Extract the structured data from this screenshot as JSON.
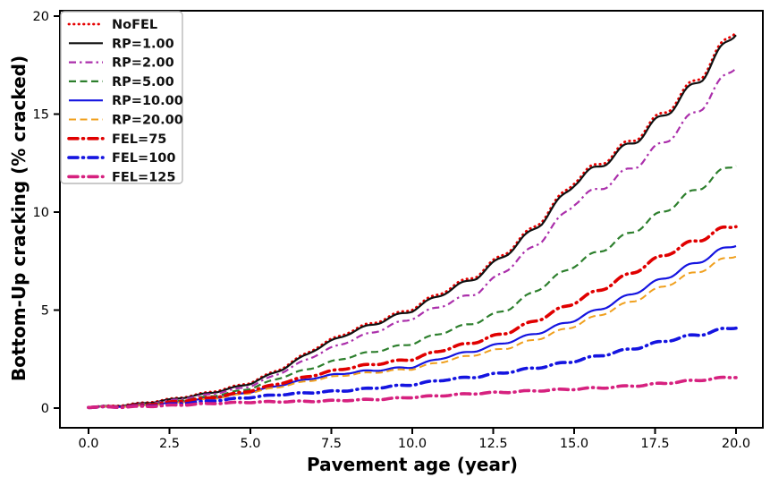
{
  "chart_data": {
    "type": "line",
    "title": "",
    "xlabel": "Pavement age (year)",
    "ylabel": "Bottom-Up cracking (% cracked)",
    "xlim": [
      -1.0,
      20.85
    ],
    "ylim": [
      -0.55,
      20.3
    ],
    "grid": false,
    "legend_position": "upper left",
    "xticks": [
      0,
      2.5,
      5,
      7.5,
      10,
      12.5,
      15,
      17.5,
      20
    ],
    "xtick_labels": [
      "0.0",
      "2.5",
      "5.0",
      "7.5",
      "10.0",
      "12.5",
      "15.0",
      "17.5",
      "20.0"
    ],
    "yticks": [
      0,
      5,
      10,
      15,
      20
    ],
    "ytick_labels": [
      "0",
      "5",
      "10",
      "15",
      "20"
    ],
    "x": [
      0,
      1,
      2,
      3,
      4,
      5,
      6,
      7,
      8,
      9,
      10,
      11,
      12,
      13,
      14,
      15,
      16,
      17,
      18,
      19,
      20
    ],
    "series": [
      {
        "name": "NoFEL",
        "color": "#e60000",
        "style": "dotted",
        "width": 2.8,
        "values": [
          0.05,
          0.14,
          0.33,
          0.58,
          0.9,
          1.3,
          2.06,
          3.07,
          3.88,
          4.48,
          5.09,
          6.0,
          6.8,
          8.1,
          9.62,
          11.62,
          12.72,
          13.93,
          15.44,
          17.15,
          19.45
        ]
      },
      {
        "name": "RP=1.00",
        "color": "#111111",
        "style": "solid",
        "width": 2.2,
        "values": [
          0.05,
          0.12,
          0.3,
          0.55,
          0.85,
          1.25,
          2.0,
          3.0,
          3.8,
          4.4,
          5.0,
          5.9,
          6.7,
          8.0,
          9.5,
          11.5,
          12.6,
          13.8,
          15.3,
          17.0,
          19.3
        ]
      },
      {
        "name": "RP=2.00",
        "color": "#ab2fab",
        "style": "dashdot",
        "width": 2.2,
        "values": [
          0.05,
          0.1,
          0.26,
          0.5,
          0.78,
          1.12,
          1.85,
          2.7,
          3.4,
          4.0,
          4.6,
          5.3,
          5.9,
          7.2,
          8.6,
          10.5,
          11.4,
          12.5,
          13.9,
          15.5,
          17.6
        ]
      },
      {
        "name": "RP=5.00",
        "color": "#2d7f2d",
        "style": "dashed",
        "width": 2.2,
        "values": [
          0.05,
          0.09,
          0.22,
          0.42,
          0.66,
          1.0,
          1.6,
          2.1,
          2.6,
          2.95,
          3.3,
          3.9,
          4.4,
          5.1,
          6.2,
          7.3,
          8.2,
          9.2,
          10.3,
          11.4,
          12.55
        ]
      },
      {
        "name": "RP=10.00",
        "color": "#1414e0",
        "style": "solid",
        "width": 2.2,
        "values": [
          0.05,
          0.08,
          0.18,
          0.35,
          0.55,
          0.82,
          1.2,
          1.55,
          1.8,
          1.95,
          2.1,
          2.6,
          2.95,
          3.4,
          3.9,
          4.5,
          5.2,
          6.0,
          6.8,
          7.6,
          8.4
        ]
      },
      {
        "name": "RP=20.00",
        "color": "#f0a01e",
        "style": "dashed",
        "width": 2.0,
        "values": [
          0.05,
          0.07,
          0.17,
          0.33,
          0.52,
          0.78,
          1.12,
          1.45,
          1.7,
          1.85,
          2.0,
          2.4,
          2.75,
          3.1,
          3.6,
          4.2,
          4.9,
          5.6,
          6.4,
          7.1,
          7.85
        ]
      },
      {
        "name": "FEL=75",
        "color": "#e00000",
        "style": "dashdot-bold",
        "width": 3.6,
        "values": [
          0.05,
          0.08,
          0.2,
          0.38,
          0.58,
          0.88,
          1.3,
          1.7,
          2.05,
          2.28,
          2.5,
          3.0,
          3.4,
          3.9,
          4.6,
          5.4,
          6.2,
          7.1,
          8.0,
          8.7,
          9.4
        ]
      },
      {
        "name": "FEL=100",
        "color": "#1414e0",
        "style": "dashdot-bold",
        "width": 3.6,
        "values": [
          0.05,
          0.06,
          0.13,
          0.25,
          0.4,
          0.55,
          0.7,
          0.8,
          0.9,
          1.05,
          1.2,
          1.45,
          1.6,
          1.85,
          2.1,
          2.4,
          2.75,
          3.1,
          3.5,
          3.8,
          4.15
        ]
      },
      {
        "name": "FEL=125",
        "color": "#d6217f",
        "style": "dashdot-bold",
        "width": 3.6,
        "values": [
          0.05,
          0.05,
          0.1,
          0.17,
          0.25,
          0.3,
          0.33,
          0.35,
          0.4,
          0.45,
          0.55,
          0.65,
          0.75,
          0.82,
          0.9,
          0.97,
          1.05,
          1.15,
          1.3,
          1.45,
          1.6
        ]
      }
    ]
  }
}
